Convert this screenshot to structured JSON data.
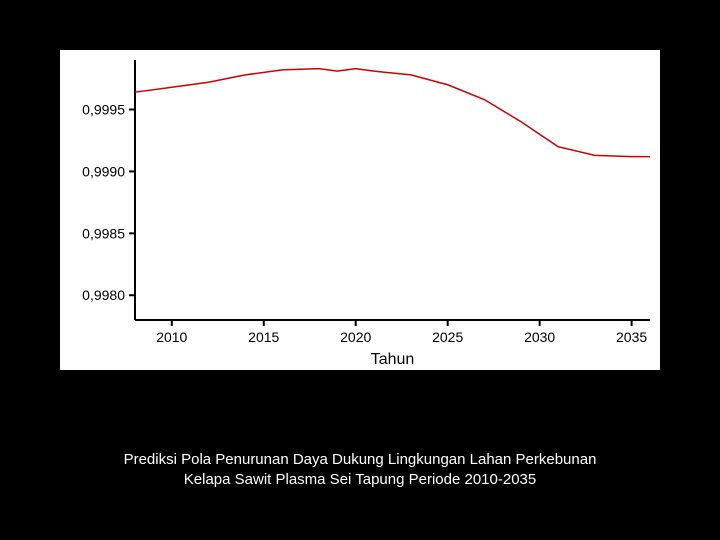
{
  "chart": {
    "type": "line",
    "background_color": "#ffffff",
    "slide_background": "#000000",
    "x": {
      "label": "Tahun",
      "label_fontsize": 16,
      "min": 2008,
      "max": 2036,
      "ticks": [
        2010,
        2015,
        2020,
        2025,
        2030,
        2035
      ],
      "tick_fontsize": 14
    },
    "y": {
      "min": 0.9978,
      "max": 0.9999,
      "ticks": [
        0.998,
        0.9985,
        0.999,
        0.9995
      ],
      "tick_labels": [
        "0,9980",
        "0,9985",
        "0,9990",
        "0,9995"
      ],
      "tick_fontsize": 14
    },
    "series": [
      {
        "name": "daya-dukung",
        "color": "#d00000",
        "width": 1.5,
        "points": [
          [
            2008,
            0.99964
          ],
          [
            2010,
            0.99968
          ],
          [
            2012,
            0.99972
          ],
          [
            2014,
            0.99978
          ],
          [
            2016,
            0.99982
          ],
          [
            2018,
            0.99983
          ],
          [
            2019,
            0.99981
          ],
          [
            2020,
            0.99983
          ],
          [
            2021,
            0.99981
          ],
          [
            2023,
            0.99978
          ],
          [
            2025,
            0.9997
          ],
          [
            2027,
            0.99958
          ],
          [
            2029,
            0.9994
          ],
          [
            2031,
            0.9992
          ],
          [
            2033,
            0.99913
          ],
          [
            2035,
            0.99912
          ],
          [
            2036,
            0.99912
          ]
        ]
      }
    ]
  },
  "caption": {
    "line1": "Prediksi Pola Penurunan Daya Dukung Lingkungan Lahan Perkebunan",
    "line2": "Kelapa Sawit Plasma Sei Tapung Periode 2010-2035",
    "color": "#ffffff",
    "fontsize": 15
  }
}
